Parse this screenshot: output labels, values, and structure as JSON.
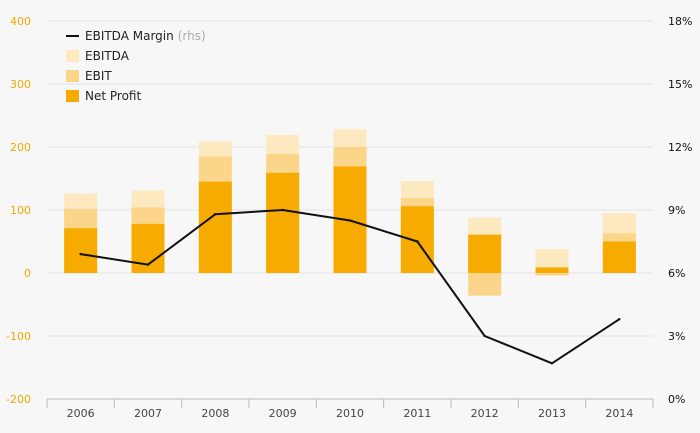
{
  "chart_data": {
    "type": "bar",
    "categories": [
      "2006",
      "2007",
      "2008",
      "2009",
      "2010",
      "2011",
      "2012",
      "2013",
      "2014"
    ],
    "series": [
      {
        "name": "EBITDA",
        "type": "bar",
        "values": [
          126,
          131,
          209,
          219,
          228,
          146,
          88,
          38,
          95
        ]
      },
      {
        "name": "EBIT",
        "type": "bar",
        "values": [
          102,
          104,
          185,
          189,
          200,
          119,
          -36,
          -4,
          63
        ]
      },
      {
        "name": "Net Profit",
        "type": "bar",
        "values": [
          71,
          78,
          145,
          159,
          169,
          106,
          61,
          9,
          50
        ]
      },
      {
        "name": "EBITDA Margin",
        "type": "line",
        "axis": "right",
        "values": [
          6.9,
          6.4,
          8.8,
          9.0,
          8.5,
          7.5,
          3.0,
          1.7,
          3.8
        ]
      }
    ],
    "y_left": {
      "ylim": [
        -200,
        400
      ],
      "ticks": [
        "400",
        "300",
        "200",
        "100",
        "0",
        "-100",
        "-200"
      ]
    },
    "y_right": {
      "ylim": [
        0,
        18
      ],
      "ticks": [
        "18%",
        "15%",
        "12%",
        "9%",
        "6%",
        "3%",
        "0%"
      ]
    },
    "legend_note": "(rhs)",
    "grid": true,
    "legend_position": "top-left"
  },
  "colors": {
    "ebitda": "#fde9c0",
    "ebit": "#fbd589",
    "net_profit": "#f7ab00",
    "margin_line": "#111111",
    "axis_label": "#f0a800",
    "grid": "#e3e3e3",
    "background": "#f7f7f7"
  }
}
